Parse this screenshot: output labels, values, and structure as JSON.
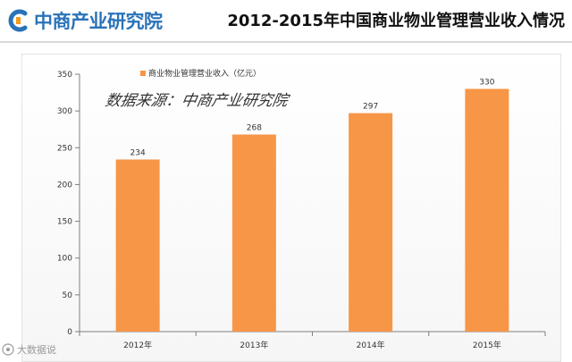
{
  "header": {
    "logo_text": "中商产业研究院",
    "title": "2012-2015年中国商业物业管理营业收入情况"
  },
  "colors": {
    "bar": "#F79646",
    "logo_blue": "#2a73b8",
    "logo_orange": "#f39a1e"
  },
  "watermark_text": "大数据说",
  "chart_data": {
    "type": "bar",
    "categories": [
      "2012年",
      "2013年",
      "2014年",
      "2015年"
    ],
    "values": [
      234,
      268,
      297,
      330
    ],
    "series": [
      {
        "name": "商业物业管理营业收入（亿元）",
        "values": [
          234,
          268,
          297,
          330
        ]
      }
    ],
    "ylim": [
      0,
      350
    ],
    "yticks": [
      0,
      50,
      100,
      150,
      200,
      250,
      300,
      350
    ],
    "grid": false,
    "legend": "top-left",
    "annotation": "数据来源：中商产业研究院",
    "xlabel": "",
    "ylabel": ""
  }
}
